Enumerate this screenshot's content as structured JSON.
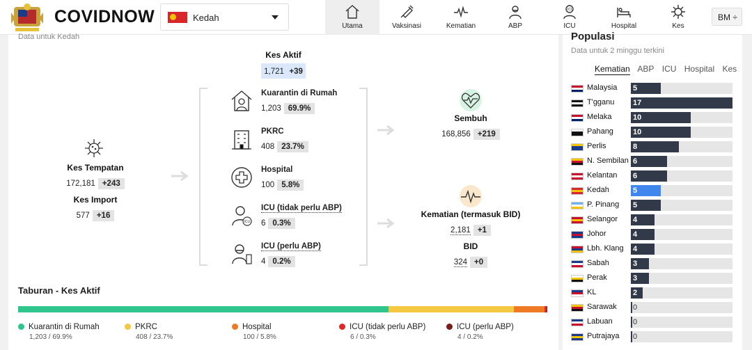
{
  "header": {
    "brand": "COVIDNOW",
    "state": "Kedah",
    "nav": [
      {
        "label": "Utama",
        "icon": "home-icon",
        "active": true
      },
      {
        "label": "Vaksinasi",
        "icon": "syringe-icon",
        "active": false
      },
      {
        "label": "Kematian",
        "icon": "pulse-icon",
        "active": false
      },
      {
        "label": "ABP",
        "icon": "ventilator-patient-icon",
        "active": false
      },
      {
        "label": "ICU",
        "icon": "icu-doctor-icon",
        "active": false
      },
      {
        "label": "Hospital",
        "icon": "hospital-bed-icon",
        "active": false
      },
      {
        "label": "Kes",
        "icon": "virus-icon",
        "active": false
      }
    ],
    "lang": "BM ÷"
  },
  "main": {
    "subtitle": "Data untuk Kedah",
    "kes_aktif": {
      "label": "Kes Aktif",
      "value": "1,721",
      "delta": "+39"
    },
    "kes_tempatan": {
      "label": "Kes Tempatan",
      "value": "172,181",
      "delta": "+243"
    },
    "kes_import": {
      "label": "Kes Import",
      "value": "577",
      "delta": "+16"
    },
    "items": [
      {
        "label": "Kuarantin di Rumah",
        "value": "1,203",
        "pct": "69.9%"
      },
      {
        "label": "PKRC",
        "value": "408",
        "pct": "23.7%"
      },
      {
        "label": "Hospital",
        "value": "100",
        "pct": "5.8%"
      },
      {
        "label": "ICU (tidak perlu ABP)",
        "value": "6",
        "pct": "0.3%"
      },
      {
        "label": "ICU (perlu ABP)",
        "value": "4",
        "pct": "0.2%"
      }
    ],
    "sembuh": {
      "label": "Sembuh",
      "value": "168,856",
      "delta": "+219"
    },
    "kematian": {
      "label": "Kematian (termasuk BID)",
      "value": "2,181",
      "delta": "+1"
    },
    "bid": {
      "label": "BID",
      "value": "324",
      "delta": "+0"
    },
    "distribution": {
      "title": "Taburan - Kes Aktif",
      "segments": [
        {
          "label": "Kuarantin di Rumah",
          "sub": "1,203 / 69.9%",
          "pct": 69.9,
          "color": "#2ec68d"
        },
        {
          "label": "PKRC",
          "sub": "408 / 23.7%",
          "pct": 23.7,
          "color": "#f5c842"
        },
        {
          "label": "Hospital",
          "sub": "100 / 5.8%",
          "pct": 5.8,
          "color": "#ef7a26"
        },
        {
          "label": "ICU (tidak perlu ABP)",
          "sub": "6 / 0.3%",
          "pct": 0.3,
          "color": "#dc2a2a"
        },
        {
          "label": "ICU (perlu ABP)",
          "sub": "4 / 0.2%",
          "pct": 0.2,
          "color": "#7a1d1d"
        }
      ]
    }
  },
  "side": {
    "title": "Populasi",
    "subtitle": "Data untuk 2 minggu terkini",
    "tabs": [
      "Kematian",
      "ABP",
      "ICU",
      "Hospital",
      "Kes"
    ],
    "active_tab": "Kematian",
    "max": 17,
    "states": [
      {
        "name": "Malaysia",
        "value": 5
      },
      {
        "name": "T'gganu",
        "value": 17
      },
      {
        "name": "Melaka",
        "value": 10
      },
      {
        "name": "Pahang",
        "value": 10
      },
      {
        "name": "Perlis",
        "value": 8
      },
      {
        "name": "N. Sembilan",
        "value": 6
      },
      {
        "name": "Kelantan",
        "value": 6
      },
      {
        "name": "Kedah",
        "value": 5,
        "highlight": true
      },
      {
        "name": "P. Pinang",
        "value": 5
      },
      {
        "name": "Selangor",
        "value": 4
      },
      {
        "name": "Johor",
        "value": 4
      },
      {
        "name": "Lbh. Klang",
        "value": 4
      },
      {
        "name": "Sabah",
        "value": 3
      },
      {
        "name": "Perak",
        "value": 3
      },
      {
        "name": "KL",
        "value": 2
      },
      {
        "name": "Sarawak",
        "value": 0
      },
      {
        "name": "Labuan",
        "value": 0
      },
      {
        "name": "Putrajaya",
        "value": 0
      }
    ]
  }
}
